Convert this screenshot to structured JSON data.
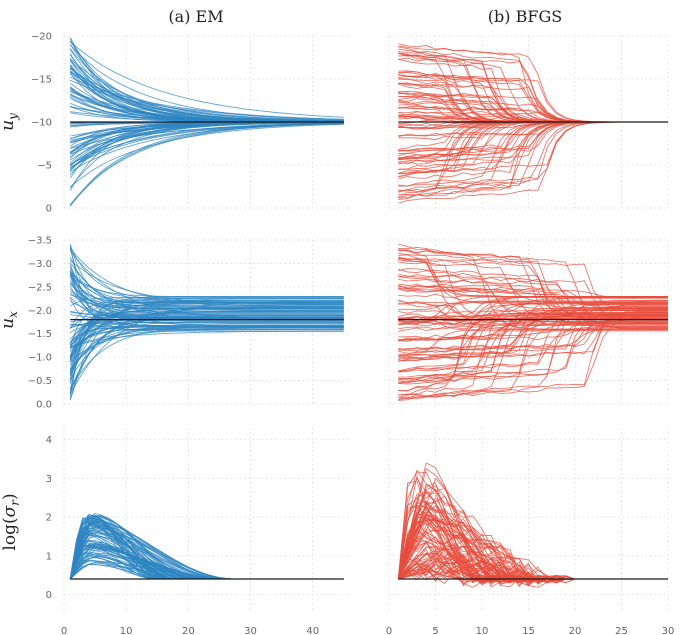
{
  "figure": {
    "column_titles": [
      "(a) EM",
      "(b) BFGS"
    ],
    "row_labels": [
      "u_y",
      "u_x",
      "log(σ_r)"
    ]
  },
  "colors": {
    "em": "#2e86c1",
    "bfgs": "#e74c3c",
    "reference": "#1a1a1a",
    "grid": "#d8d8d8",
    "tick_text": "#666666"
  },
  "chart_data": [
    {
      "type": "line",
      "panel": "EM u_y",
      "title": "(a) EM",
      "ylabel": "u_y",
      "xlim": [
        0,
        46
      ],
      "ylim": [
        0,
        -20
      ],
      "inverted_y": true,
      "xticks": [
        0,
        10,
        20,
        30,
        40
      ],
      "yticks": [
        0,
        -5,
        -10,
        -15,
        -20
      ],
      "ytick_labels": [
        "0",
        "−5",
        "−10",
        "−15",
        "−20"
      ],
      "series": [
        {
          "values": "~100 trajectories from initial values 0 to −19 converging to −10 by iteration ~35"
        }
      ],
      "reference_line": -10,
      "n_iter": 45,
      "start_range": [
        -0.5,
        -19
      ],
      "converge": -10,
      "grid": true
    },
    {
      "type": "line",
      "panel": "BFGS u_y",
      "title": "(b) BFGS",
      "ylabel": "u_y",
      "xlim": [
        0,
        30
      ],
      "ylim": [
        0,
        -20
      ],
      "inverted_y": true,
      "xticks": [
        0,
        5,
        10,
        15,
        20,
        25,
        30
      ],
      "yticks": [
        0,
        -5,
        -10,
        -15,
        -20
      ],
      "series": [
        {
          "values": "~100 trajectories from initial values 0 to −19 converging to −10 by iteration ~18"
        }
      ],
      "reference_line": -10,
      "n_iter": 30,
      "start_range": [
        -0.5,
        -19
      ],
      "converge": -10,
      "grid": true
    },
    {
      "type": "line",
      "panel": "EM u_x",
      "ylabel": "u_x",
      "xlim": [
        0,
        46
      ],
      "ylim": [
        0,
        -3.5
      ],
      "inverted_y": true,
      "xticks": [
        0,
        10,
        20,
        30,
        40
      ],
      "yticks": [
        0,
        -0.5,
        -1.0,
        -1.5,
        -2.0,
        -2.5,
        -3.0,
        -3.5
      ],
      "ytick_labels": [
        "0.0",
        "−0.5",
        "−1.0",
        "−1.5",
        "−2.0",
        "−2.5",
        "−3.0",
        "−3.5"
      ],
      "series": [
        {
          "values": "~100 trajectories from 0 to −3.5 settling in band −1.5 to −2.3 around −1.8"
        }
      ],
      "reference_line": -1.8,
      "n_iter": 45,
      "start_range": [
        -0.05,
        -3.5
      ],
      "grid": true
    },
    {
      "type": "line",
      "panel": "BFGS u_x",
      "ylabel": "u_x",
      "xlim": [
        0,
        30
      ],
      "ylim": [
        0,
        -3.5
      ],
      "inverted_y": true,
      "xticks": [
        0,
        5,
        10,
        15,
        20,
        25,
        30
      ],
      "yticks": [
        0,
        -0.5,
        -1.0,
        -1.5,
        -2.0,
        -2.5,
        -3.0,
        -3.5
      ],
      "series": [
        {
          "values": "~100 trajectories from 0 to −3.5 settling in band −1.5 to −2.3 around −1.8"
        }
      ],
      "reference_line": -1.8,
      "n_iter": 30,
      "start_range": [
        -0.05,
        -3.5
      ],
      "grid": true
    },
    {
      "type": "line",
      "panel": "EM log(sigma_r)",
      "ylabel": "log(σ_r)",
      "xlim": [
        0,
        46
      ],
      "ylim": [
        -0.4,
        4.3
      ],
      "xticks": [
        0,
        10,
        20,
        30,
        40
      ],
      "yticks": [
        0,
        1,
        2,
        3,
        4
      ],
      "series": [
        {
          "values": "~100 trajectories rising to peaks up to ~2.1 near iteration 5 then decaying to 0.4 by iteration ~28"
        }
      ],
      "reference_line": 0.4,
      "n_iter": 45,
      "grid": true
    },
    {
      "type": "line",
      "panel": "BFGS log(sigma_r)",
      "ylabel": "log(σ_r)",
      "xlim": [
        0,
        30
      ],
      "ylim": [
        -0.4,
        4.3
      ],
      "xticks": [
        0,
        5,
        10,
        15,
        20,
        25,
        30
      ],
      "yticks": [
        0,
        1,
        2,
        3,
        4
      ],
      "series": [
        {
          "values": "~100 noisy trajectories spiking up to ~3.8 near iteration 3 then settling at 0.4 by iteration ~17"
        }
      ],
      "reference_line": 0.4,
      "n_iter": 30,
      "grid": true
    }
  ]
}
